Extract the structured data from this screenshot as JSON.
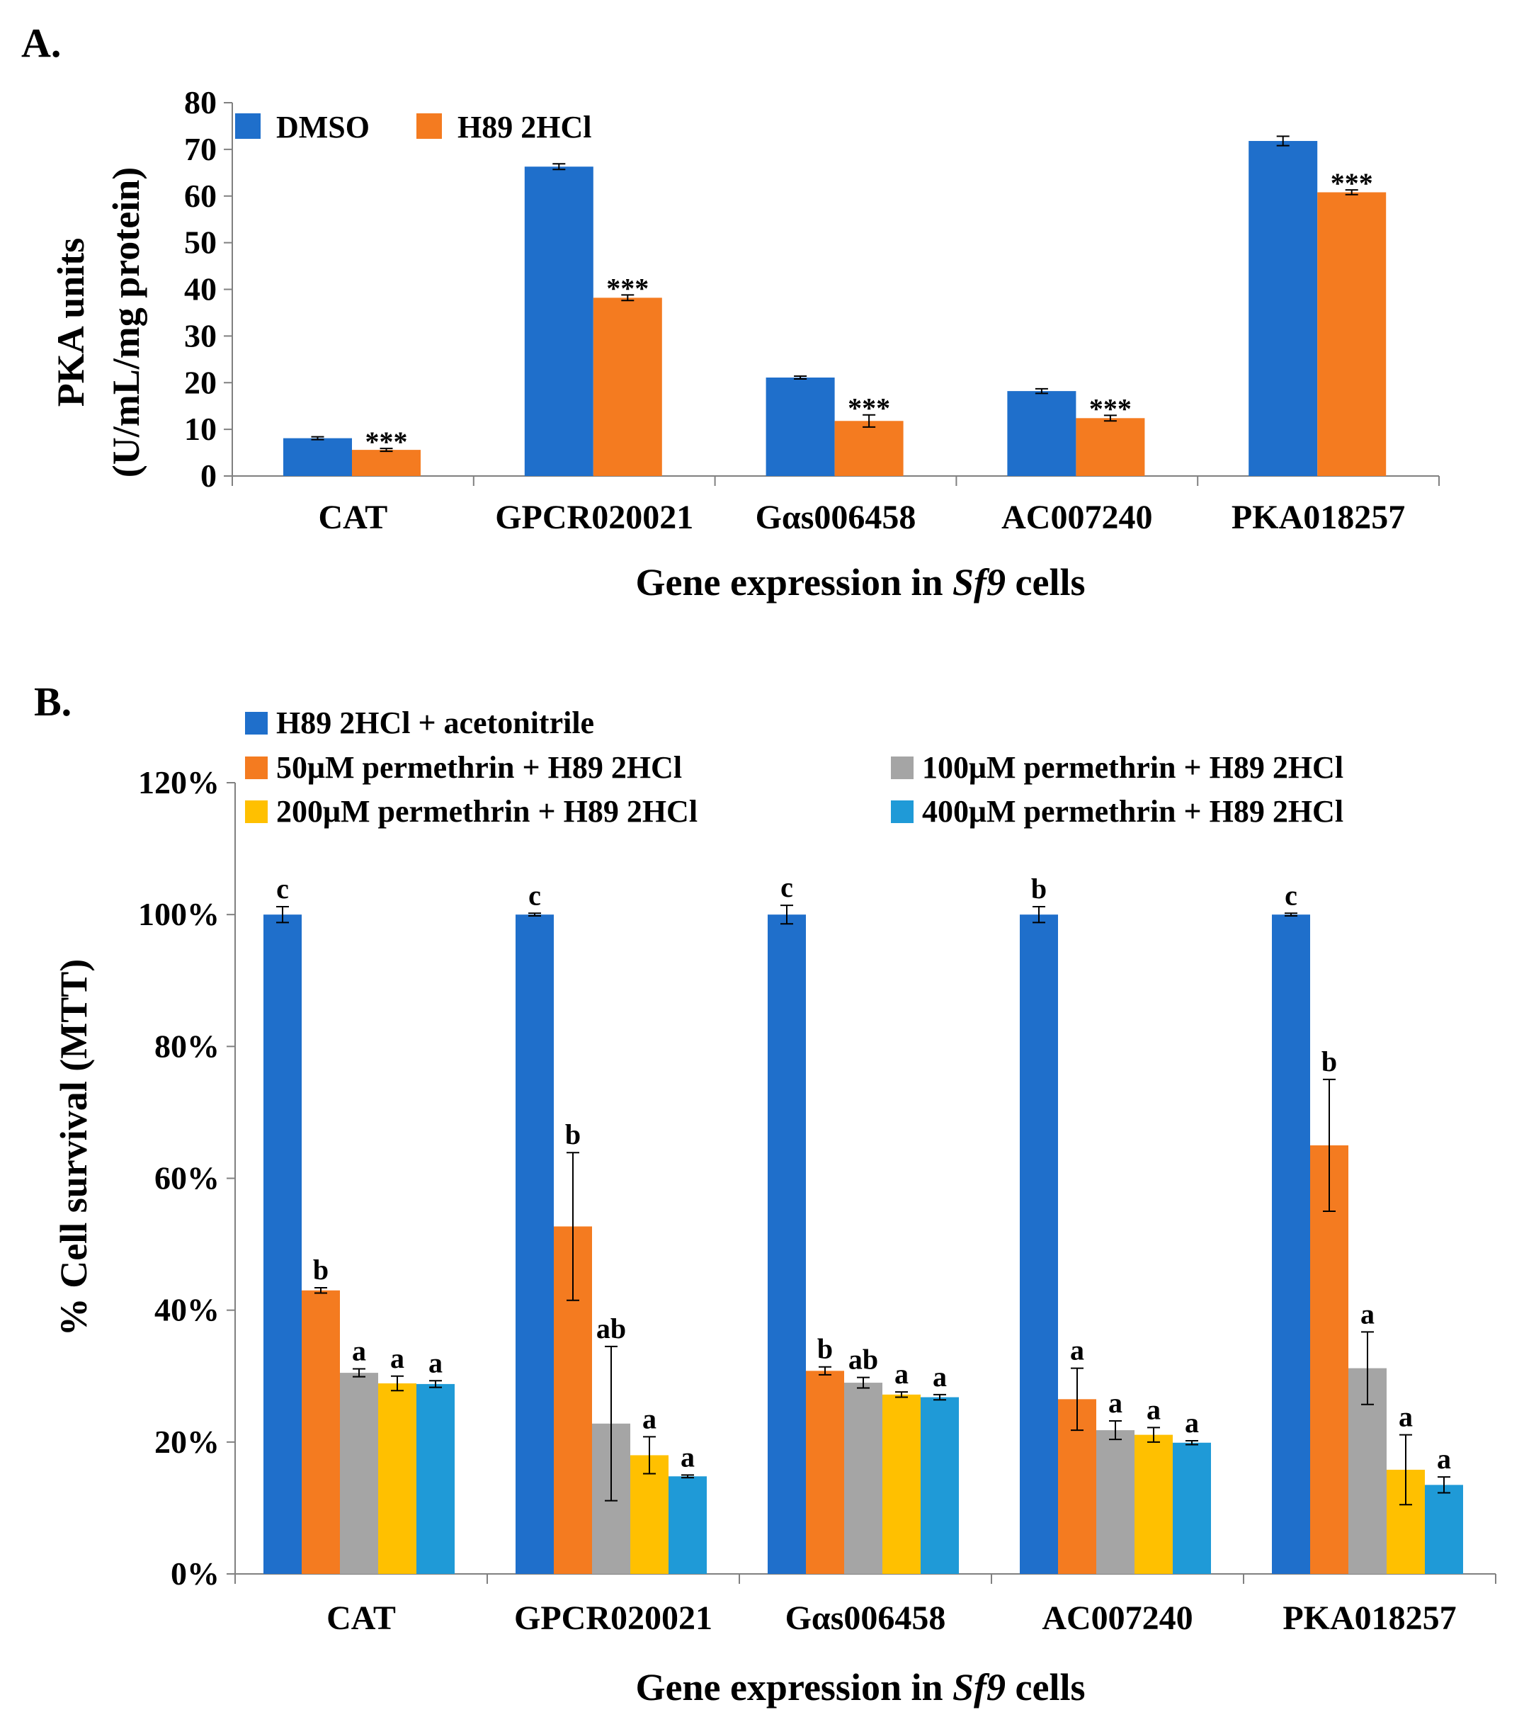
{
  "chart_data": [
    {
      "type": "bar",
      "panel_label": "A.",
      "title": "",
      "xlabel_main": "Gene expression  in",
      "xlabel_italic": "Sf9",
      "xlabel_tail": "cells",
      "ylabel_line1": "PKA units",
      "ylabel_line2": "(U/mL/mg protein)",
      "ylim": [
        0,
        80
      ],
      "yticks": [
        0,
        10,
        20,
        30,
        40,
        50,
        60,
        70,
        80
      ],
      "ytick_labels": [
        "0",
        "10",
        "20",
        "30",
        "40",
        "50",
        "60",
        "70",
        "80"
      ],
      "categories": [
        "CAT",
        "GPCR020021",
        "Gαs006458",
        "AC007240",
        "PKA018257"
      ],
      "series": [
        {
          "name": "DMSO",
          "color": "#1f6fcb",
          "values": [
            8.1,
            66.3,
            21.1,
            18.2,
            71.8
          ],
          "errors": [
            0.3,
            0.6,
            0.3,
            0.5,
            1.0
          ]
        },
        {
          "name": "H89 2HCl",
          "color": "#f47b20",
          "values": [
            5.6,
            38.2,
            11.8,
            12.4,
            60.8
          ],
          "errors": [
            0.3,
            0.6,
            1.3,
            0.6,
            0.5
          ]
        }
      ],
      "annotations": [
        {
          "series": "H89 2HCl",
          "labels": [
            "***",
            "***",
            "***",
            "***",
            "***"
          ]
        }
      ],
      "legend": "top-left",
      "grid": false
    },
    {
      "type": "bar",
      "panel_label": "B.",
      "title": "",
      "xlabel_main": "Gene expression  in",
      "xlabel_italic": "Sf9",
      "xlabel_tail": "cells",
      "ylabel": "% Cell survival (MTT)",
      "ylim": [
        0,
        120
      ],
      "yticks": [
        0,
        20,
        40,
        60,
        80,
        100,
        120
      ],
      "ytick_labels": [
        "0%",
        "20%",
        "40%",
        "60%",
        "80%",
        "100%",
        "120%"
      ],
      "categories": [
        "CAT",
        "GPCR020021",
        "Gαs006458",
        "AC007240",
        "PKA018257"
      ],
      "series": [
        {
          "name": "H89 2HCl + acetonitrile",
          "color": "#1f6fcb",
          "values": [
            100,
            100,
            100,
            100,
            100
          ],
          "errors": [
            1.2,
            0.2,
            1.4,
            1.2,
            0.2
          ],
          "letters": [
            "c",
            "c",
            "c",
            "b",
            "c"
          ]
        },
        {
          "name": "50μM permethrin + H89 2HCl",
          "color": "#f47b20",
          "values": [
            43,
            52.7,
            30.8,
            26.5,
            65
          ],
          "errors": [
            0.4,
            11.2,
            0.6,
            4.7,
            10
          ],
          "letters": [
            "b",
            "b",
            "b",
            "a",
            "b"
          ]
        },
        {
          "name": "100μM permethrin  + H89 2HCl",
          "color": "#a5a5a5",
          "values": [
            30.5,
            22.8,
            29,
            21.8,
            31.2
          ],
          "errors": [
            0.6,
            11.7,
            0.8,
            1.4,
            5.5
          ],
          "letters": [
            "a",
            "ab",
            "ab",
            "a",
            "a"
          ]
        },
        {
          "name": "200μM permethrin  + H89 2HCl",
          "color": "#ffc000",
          "values": [
            28.9,
            18,
            27.2,
            21.1,
            15.8
          ],
          "errors": [
            1.1,
            2.8,
            0.4,
            1.1,
            5.3
          ],
          "letters": [
            "a",
            "a",
            "a",
            "a",
            "a"
          ]
        },
        {
          "name": "400μM permethrin  + H89 2HCl",
          "color": "#1f9ad7",
          "values": [
            28.8,
            14.8,
            26.8,
            19.9,
            13.5
          ],
          "errors": [
            0.5,
            0.2,
            0.4,
            0.3,
            1.2
          ],
          "letters": [
            "a",
            "a",
            "a",
            "a",
            "a"
          ]
        }
      ],
      "legend": "top",
      "grid": false
    }
  ]
}
